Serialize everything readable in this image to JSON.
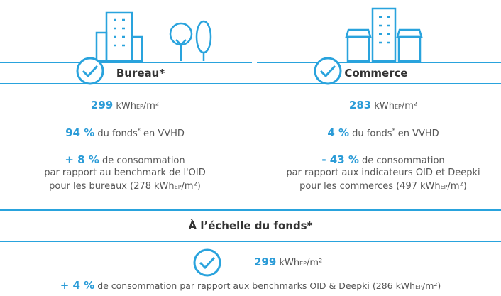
{
  "unit": {
    "base": "kWh",
    "sub": "EP",
    "rest": "/m²"
  },
  "bureau": {
    "title": "Bureau*",
    "intensity": "299",
    "share": "94 %",
    "share_text": "du fonds",
    "share_note": "*",
    "share_suffix": "en VVHD",
    "delta": "+ 8 %",
    "delta_text": "de consommation",
    "line1": "par rapport au benchmark de l'OID",
    "line2_prefix": "pour les bureaux (278",
    "line2_suffix": ")"
  },
  "commerce": {
    "title": "Commerce",
    "intensity": "283",
    "share": "4 %",
    "share_text": "du fonds",
    "share_note": "*",
    "share_suffix": "en VVHD",
    "delta": "- 43 %",
    "delta_text": "de consommation",
    "line1": "par rapport aux indicateurs OID et Deepki",
    "line2_prefix": "pour les commerces (497",
    "line2_suffix": ")"
  },
  "fonds": {
    "title": "À l’échelle du fonds*",
    "intensity": "299",
    "delta": "+ 4 %",
    "delta_text": "de consommation par rapport aux benchmarks OID & Deepki (286",
    "delta_suffix": ")"
  }
}
